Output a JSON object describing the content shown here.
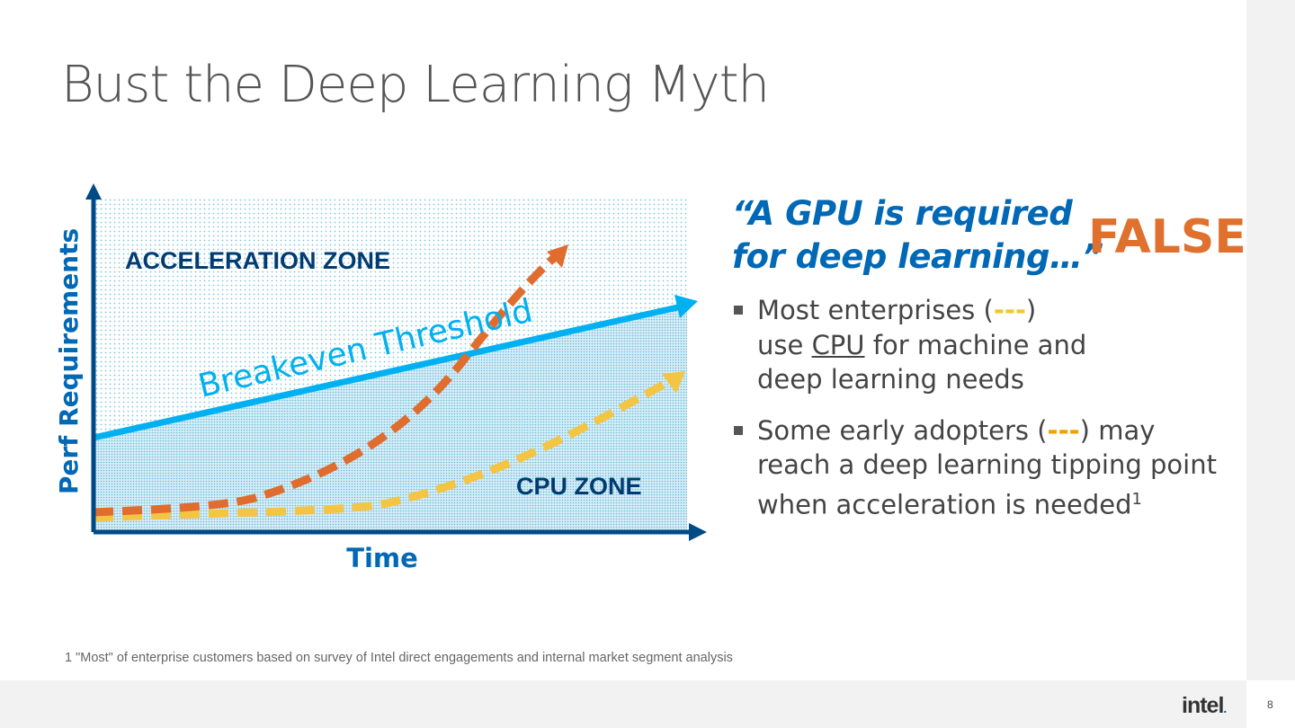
{
  "slide": {
    "title": "Bust the Deep Learning Myth",
    "page_number": "8",
    "logo": "intel",
    "footnote": "1 \"Most\" of enterprise customers based on survey of Intel direct engagements and internal market segment analysis"
  },
  "diagram": {
    "y_axis_label": "Perf Requirements",
    "x_axis_label": "Time",
    "acceleration_zone": "ACCELERATION ZONE",
    "cpu_zone": "CPU ZONE",
    "threshold_label": "Breakeven Threshold",
    "colors": {
      "axis": "#004a86",
      "threshold": "#00b0f0",
      "early_adopters": "#e06c2e",
      "most_enterprises": "#f4c542",
      "zone_text": "#003c71"
    }
  },
  "right": {
    "quote_line1": "“A GPU is required",
    "quote_line2": "for deep learning…”",
    "verdict": "FALSE",
    "bullet1": {
      "a": "Most enterprises (",
      "dash": "---",
      "b": ")",
      "c": "use ",
      "cpu": "CPU",
      "d": " for machine and",
      "e": "deep learning needs"
    },
    "bullet2": {
      "a": "Some early adopters (",
      "dash": "---",
      "b": ") may",
      "c": "reach a deep learning tipping point",
      "d": "when acceleration is needed",
      "sup": "1"
    }
  }
}
